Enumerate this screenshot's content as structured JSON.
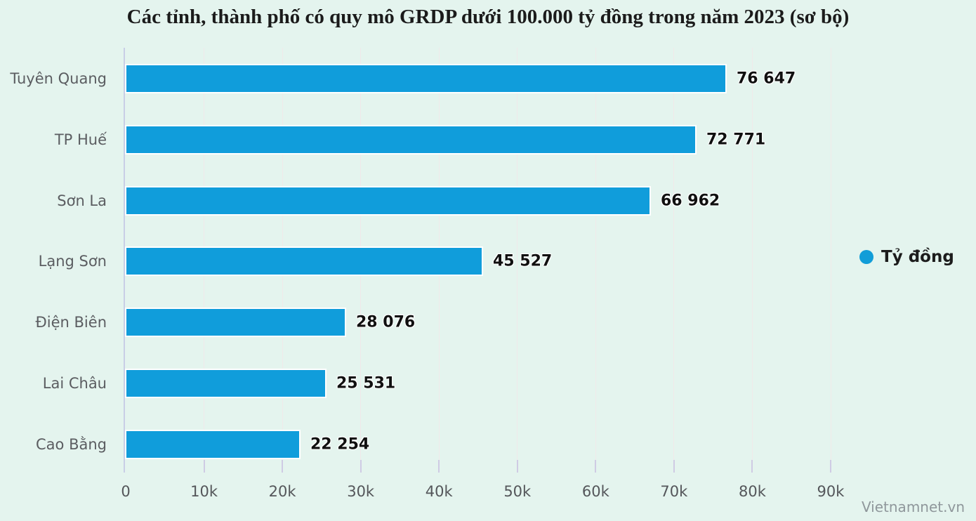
{
  "title": "Các tỉnh, thành phố có quy mô GRDP dưới 100.000 tỷ đồng trong năm 2023 (sơ bộ)",
  "legend": {
    "label": "Tỷ đồng",
    "marker_color": "#119dd8"
  },
  "watermark": "Vietnamnet.vn",
  "colors": {
    "background": "#e4f4ee",
    "bar": "#109ddb",
    "bar_border": "#ffffff",
    "category_label": "#5b5d61",
    "value_label": "#101010",
    "tick_label": "#54565a",
    "axis_line": "#c9cee6",
    "gridline": "#f0e9ea"
  },
  "chart_data": {
    "type": "bar",
    "orientation": "horizontal",
    "title": "Các tỉnh, thành phố có quy mô GRDP dưới 100.000 tỷ đồng trong năm 2023 (sơ bộ)",
    "categories": [
      "Tuyên Quang",
      "TP Huế",
      "Sơn La",
      "Lạng Sơn",
      "Điện Biên",
      "Lai Châu",
      "Cao Bằng"
    ],
    "series": [
      {
        "name": "Tỷ đồng",
        "values": [
          76647,
          72771,
          66962,
          45527,
          28076,
          25531,
          22254
        ]
      }
    ],
    "value_labels": [
      "76 647",
      "72 771",
      "66 962",
      "45 527",
      "28 076",
      "25 531",
      "22 254"
    ],
    "xlabel": "",
    "ylabel": "",
    "xlim": [
      0,
      90000
    ],
    "x_tick_labels": [
      "0",
      "10k",
      "20k",
      "30k",
      "40k",
      "50k",
      "60k",
      "70k",
      "80k",
      "90k"
    ],
    "x_tick_values": [
      0,
      10000,
      20000,
      30000,
      40000,
      50000,
      60000,
      70000,
      80000,
      90000
    ],
    "grid": "vertical",
    "legend_position": "right",
    "unit": "tỷ đồng"
  }
}
